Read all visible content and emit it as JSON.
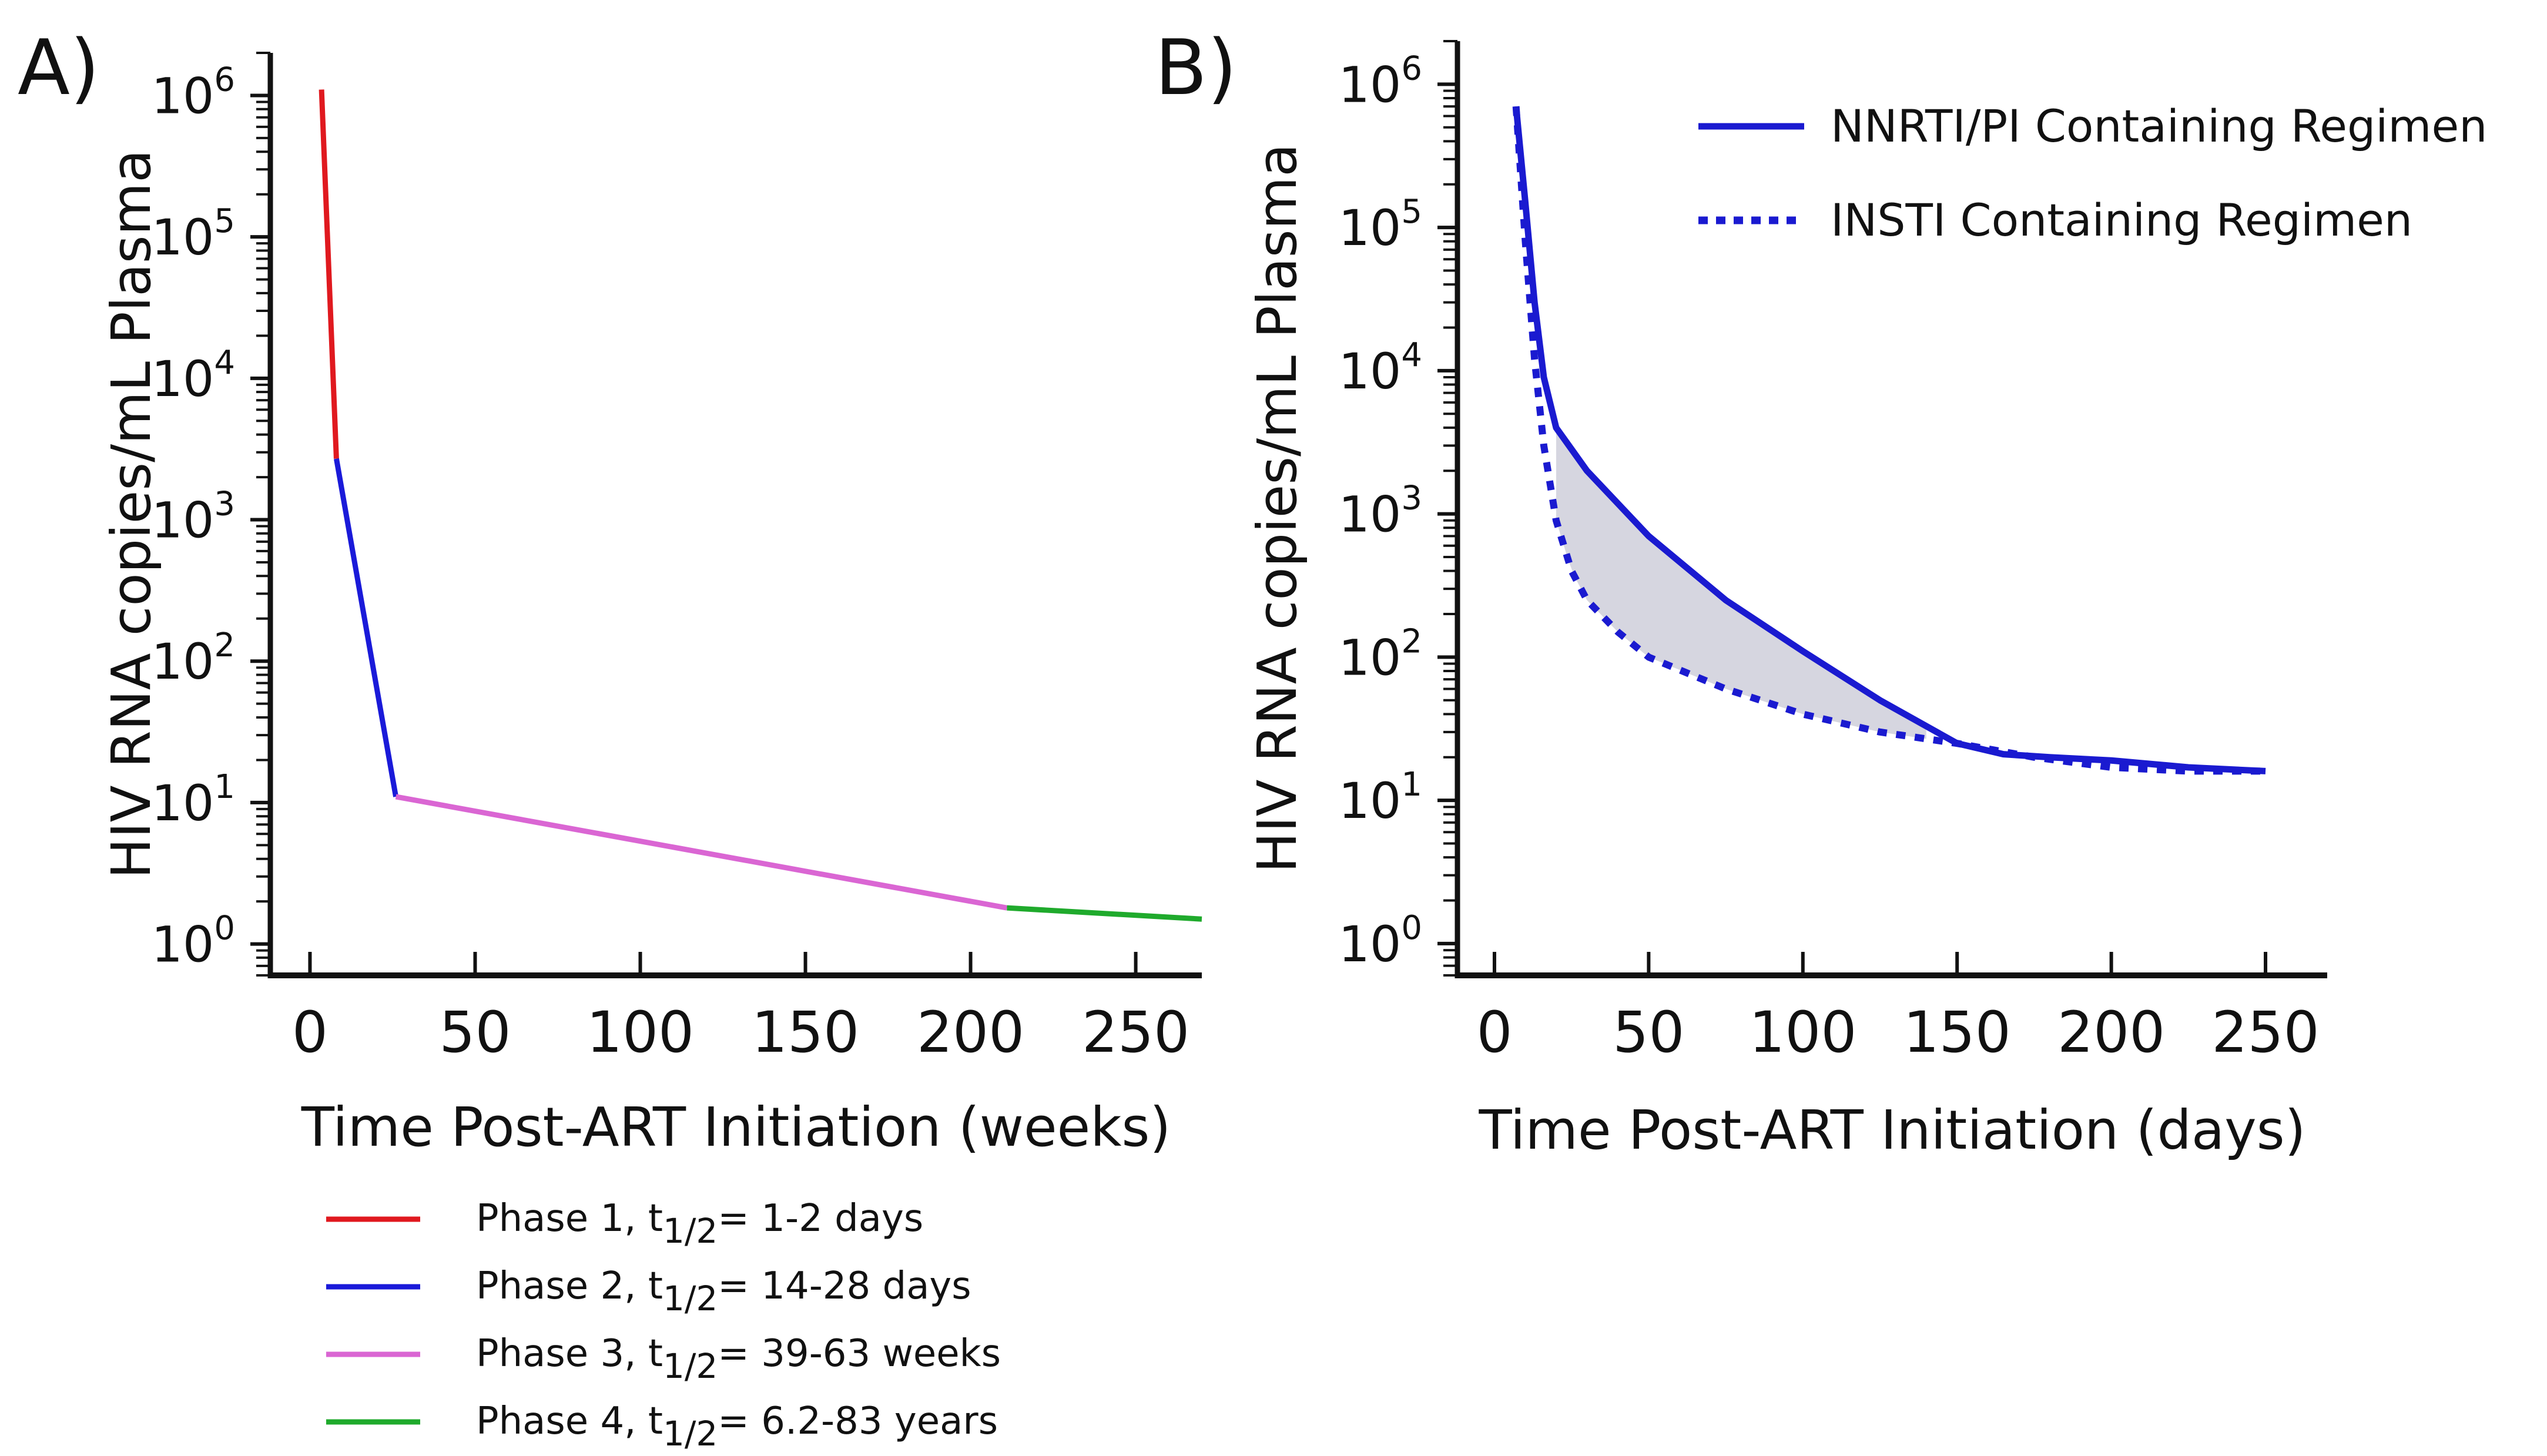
{
  "panels": {
    "a": {
      "label": "A)"
    },
    "b": {
      "label": "B)"
    }
  },
  "chart_data": [
    {
      "type": "line",
      "panel": "A)",
      "title": "",
      "xlabel": "Time Post-ART Initiation (weeks)",
      "ylabel": "HIV RNA copies/mL Plasma",
      "yscale": "log",
      "xlim": [
        -12,
        270
      ],
      "ylim": [
        0.6,
        2000000
      ],
      "xticks": [
        0,
        50,
        100,
        150,
        200,
        250
      ],
      "xtick_labels": [
        "0",
        "50",
        "100",
        "150",
        "200",
        "250"
      ],
      "yticks": [
        1,
        10,
        100,
        1000,
        10000,
        100000,
        1000000
      ],
      "ytick_labels": [
        {
          "base": "10",
          "exp": "0"
        },
        {
          "base": "10",
          "exp": "1"
        },
        {
          "base": "10",
          "exp": "2"
        },
        {
          "base": "10",
          "exp": "3"
        },
        {
          "base": "10",
          "exp": "4"
        },
        {
          "base": "10",
          "exp": "5"
        },
        {
          "base": "10",
          "exp": "6"
        }
      ],
      "series": [
        {
          "name": "Phase 1",
          "color": "#e0191f",
          "x": [
            3.5,
            8
          ],
          "y": [
            1100000,
            2700
          ]
        },
        {
          "name": "Phase 2",
          "color": "#1a1ad9",
          "x": [
            8,
            26
          ],
          "y": [
            2700,
            11
          ]
        },
        {
          "name": "Phase 3",
          "color": "#da66d3",
          "x": [
            26,
            211
          ],
          "y": [
            11,
            1.8
          ]
        },
        {
          "name": "Phase 4",
          "color": "#1faa2c",
          "x": [
            211,
            270
          ],
          "y": [
            1.8,
            1.5
          ]
        }
      ],
      "legend": {
        "position": "bottom",
        "entries": [
          {
            "prefix": "Phase 1, t",
            "sub": "1/2",
            "suffix": "= 1-2 days",
            "color": "#e0191f"
          },
          {
            "prefix": "Phase 2, t",
            "sub": "1/2",
            "suffix": "= 14-28 days",
            "color": "#1a1ad9"
          },
          {
            "prefix": "Phase 3, t",
            "sub": "1/2",
            "suffix": "= 39-63 weeks",
            "color": "#da66d3"
          },
          {
            "prefix": "Phase 4, t",
            "sub": "1/2",
            "suffix": "= 6.2-83 years",
            "color": "#1faa2c"
          }
        ]
      }
    },
    {
      "type": "line",
      "panel": "B)",
      "title": "",
      "xlabel": "Time Post-ART Initiation (days)",
      "ylabel": "HIV RNA copies/mL Plasma",
      "yscale": "log",
      "xlim": [
        -12,
        270
      ],
      "ylim": [
        0.6,
        2000000
      ],
      "xticks": [
        0,
        50,
        100,
        150,
        200,
        250
      ],
      "xtick_labels": [
        "0",
        "50",
        "100",
        "150",
        "200",
        "250"
      ],
      "yticks": [
        1,
        10,
        100,
        1000,
        10000,
        100000,
        1000000
      ],
      "ytick_labels": [
        {
          "base": "10",
          "exp": "0"
        },
        {
          "base": "10",
          "exp": "1"
        },
        {
          "base": "10",
          "exp": "2"
        },
        {
          "base": "10",
          "exp": "3"
        },
        {
          "base": "10",
          "exp": "4"
        },
        {
          "base": "10",
          "exp": "5"
        },
        {
          "base": "10",
          "exp": "6"
        }
      ],
      "series": [
        {
          "name": "NNRTI/PI Containing Regimen",
          "style": "solid",
          "color": "#1a1ad0",
          "x": [
            7,
            10,
            13,
            16,
            20,
            30,
            50,
            75,
            100,
            125,
            150,
            165,
            180,
            200,
            225,
            250
          ],
          "y": [
            700000,
            150000,
            30000,
            9000,
            4000,
            2000,
            700,
            250,
            110,
            50,
            25,
            21,
            20,
            19,
            17,
            16
          ]
        },
        {
          "name": "INSTI Containing Regimen",
          "style": "dotted",
          "color": "#1a1ad0",
          "x": [
            7,
            10,
            13,
            16,
            20,
            25,
            30,
            40,
            50,
            75,
            100,
            125,
            150,
            175,
            200,
            225,
            250
          ],
          "y": [
            700000,
            80000,
            12000,
            3000,
            900,
            400,
            250,
            150,
            100,
            60,
            40,
            30,
            25,
            20,
            17,
            16,
            16
          ]
        }
      ],
      "shaded_region": {
        "between": [
          "NNRTI/PI Containing Regimen",
          "INSTI Containing Regimen"
        ],
        "x_range": [
          20,
          140
        ],
        "color": "#d6d6e0"
      },
      "legend": {
        "position": "top-right",
        "entries": [
          {
            "label": "NNRTI/PI Containing Regimen",
            "style": "solid",
            "color": "#1a1ad0"
          },
          {
            "label": "INSTI Containing Regimen",
            "style": "dotted",
            "color": "#1a1ad0"
          }
        ]
      }
    }
  ]
}
